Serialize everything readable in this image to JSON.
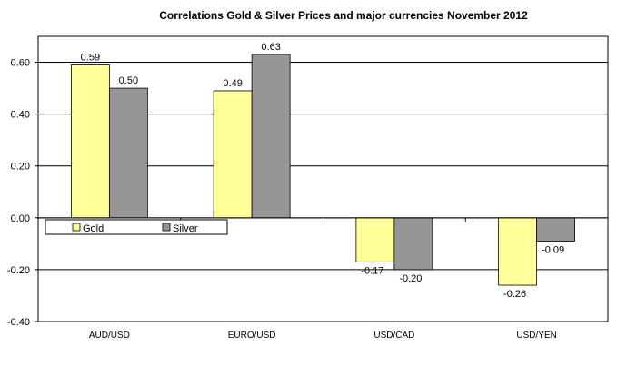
{
  "chart_data": {
    "type": "bar",
    "title": "Correlations Gold & Silver Prices and major currencies November 2012",
    "categories": [
      "AUD/USD",
      "EURO/USD",
      "USD/CAD",
      "USD/YEN"
    ],
    "series": [
      {
        "name": "Gold",
        "values": [
          0.59,
          0.49,
          -0.17,
          -0.26
        ],
        "color": "#ffff99"
      },
      {
        "name": "Silver",
        "values": [
          0.5,
          0.63,
          -0.2,
          -0.09
        ],
        "color": "#969696"
      }
    ],
    "data_labels": [
      [
        "0.59",
        "0.49",
        "-0.17",
        "-0.26"
      ],
      [
        "0.50",
        "0.63",
        "-0.20",
        "-0.09"
      ]
    ],
    "xlabel": "",
    "ylabel": "",
    "ylim": [
      -0.4,
      0.7
    ],
    "yticks": [
      0.6,
      0.4,
      0.2,
      0.0,
      -0.2,
      -0.4
    ],
    "ytick_labels": [
      "0.60",
      "0.40",
      "0.20",
      "0.00",
      "-0.20",
      "-0.40"
    ],
    "grid": true,
    "legend_position": "left, below zero line"
  }
}
